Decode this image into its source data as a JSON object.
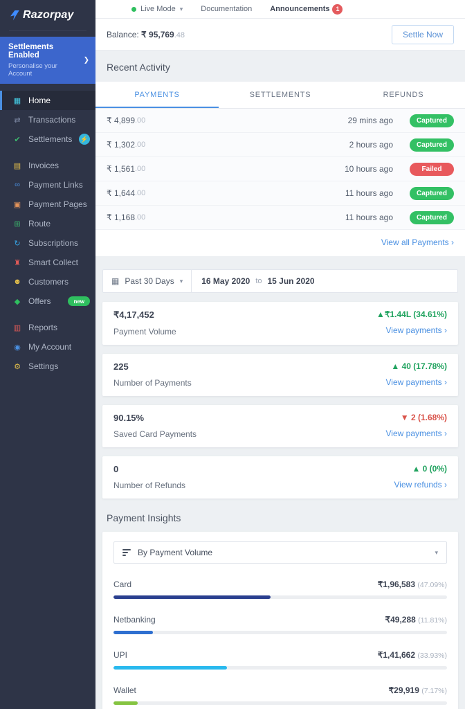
{
  "brand": {
    "name": "Razorpay",
    "mark_color": "#3f8cff"
  },
  "colors": {
    "accent_blue": "#4a90e2",
    "sidebar_bg": "#2e3447",
    "banner_blue": "#3c66cc",
    "captured_green": "#33c064",
    "failed_red": "#e8595c",
    "delta_green": "#21a35f",
    "delta_red": "#d9534a",
    "main_bg": "#edf0f3"
  },
  "sidebar": {
    "banner": {
      "title": "Settlements Enabled",
      "subtitle": "Personalise your Account",
      "chevron": "❯"
    },
    "items": [
      {
        "label": "Home",
        "icon": "▦",
        "icon_color": "#45d0e8",
        "active": true
      },
      {
        "label": "Transactions",
        "icon": "⇄",
        "icon_color": "#7e8aa5"
      },
      {
        "label": "Settlements",
        "icon": "✔",
        "icon_color": "#3dba6f",
        "badge": "⚡"
      },
      {
        "label": "Invoices",
        "icon": "▤",
        "icon_color": "#e5c04a"
      },
      {
        "label": "Payment Links",
        "icon": "∞",
        "icon_color": "#4a90e2"
      },
      {
        "label": "Payment Pages",
        "icon": "▣",
        "icon_color": "#e2935a"
      },
      {
        "label": "Route",
        "icon": "⊞",
        "icon_color": "#3bbf6e"
      },
      {
        "label": "Subscriptions",
        "icon": "↻",
        "icon_color": "#36a6e8"
      },
      {
        "label": "Smart Collect",
        "icon": "♜",
        "icon_color": "#e05a58"
      },
      {
        "label": "Customers",
        "icon": "☻",
        "icon_color": "#e5c04a"
      },
      {
        "label": "Offers",
        "icon": "◆",
        "icon_color": "#2fbf5f",
        "badge": "new"
      },
      {
        "label": "Reports",
        "icon": "▥",
        "icon_color": "#e05a58"
      },
      {
        "label": "My Account",
        "icon": "◉",
        "icon_color": "#4a90e2"
      },
      {
        "label": "Settings",
        "icon": "⚙",
        "icon_color": "#e5c04a"
      }
    ]
  },
  "topbar": {
    "live_mode": "Live Mode",
    "caret": "▾",
    "documentation": "Documentation",
    "announcements": "Announcements",
    "announcements_count": "1"
  },
  "balance": {
    "label": "Balance:",
    "amount": "₹ 95,769",
    "fraction": ".48",
    "settle_button": "Settle Now"
  },
  "recent_activity": {
    "title": "Recent Activity",
    "tabs": [
      "PAYMENTS",
      "SETTLEMENTS",
      "REFUNDS"
    ],
    "rows": [
      {
        "amount": "₹ 4,899",
        "fraction": ".00",
        "time": "29 mins ago",
        "status": "Captured",
        "status_color": "#33c064"
      },
      {
        "amount": "₹ 1,302",
        "fraction": ".00",
        "time": "2 hours ago",
        "status": "Captured",
        "status_color": "#33c064"
      },
      {
        "amount": "₹ 1,561",
        "fraction": ".00",
        "time": "10 hours ago",
        "status": "Failed",
        "status_color": "#e8595c"
      },
      {
        "amount": "₹ 1,644",
        "fraction": ".00",
        "time": "11 hours ago",
        "status": "Captured",
        "status_color": "#33c064"
      },
      {
        "amount": "₹ 1,168",
        "fraction": ".00",
        "time": "11 hours ago",
        "status": "Captured",
        "status_color": "#33c064"
      }
    ],
    "view_all": "View all Payments ›"
  },
  "date_filter": {
    "preset": "Past 30 Days",
    "caret": "▾",
    "calendar_icon": "▦",
    "from": "16 May 2020",
    "to_word": "to",
    "to": "15 Jun 2020"
  },
  "stats": [
    {
      "value": "₹4,17,452",
      "label": "Payment Volume",
      "delta": "▲₹1.44L (34.61%)",
      "delta_color": "#21a35f",
      "link": "View payments ›"
    },
    {
      "value": "225",
      "label": "Number of Payments",
      "delta": "▲ 40 (17.78%)",
      "delta_color": "#21a35f",
      "link": "View payments ›"
    },
    {
      "value": "90.15%",
      "label": "Saved Card Payments",
      "delta": "▼ 2 (1.68%)",
      "delta_color": "#d9534a",
      "link": "View payments ›"
    },
    {
      "value": "0",
      "label": "Number of Refunds",
      "delta": "▲ 0 (0%)",
      "delta_color": "#21a35f",
      "link": "View refunds ›"
    }
  ],
  "insights": {
    "title": "Payment Insights",
    "sort_label": "By Payment Volume",
    "caret": "▾",
    "bars": [
      {
        "name": "Card",
        "amount": "₹1,96,583",
        "pct_label": "(47.09%)",
        "percent": 47.09,
        "color": "#2a3f8f"
      },
      {
        "name": "Netbanking",
        "amount": "₹49,288",
        "pct_label": "(11.81%)",
        "percent": 11.81,
        "color": "#2e6fd0"
      },
      {
        "name": "UPI",
        "amount": "₹1,41,662",
        "pct_label": "(33.93%)",
        "percent": 33.93,
        "color": "#29b9ee"
      },
      {
        "name": "Wallet",
        "amount": "₹29,919",
        "pct_label": "(7.17%)",
        "percent": 7.17,
        "color": "#85c441"
      }
    ]
  }
}
